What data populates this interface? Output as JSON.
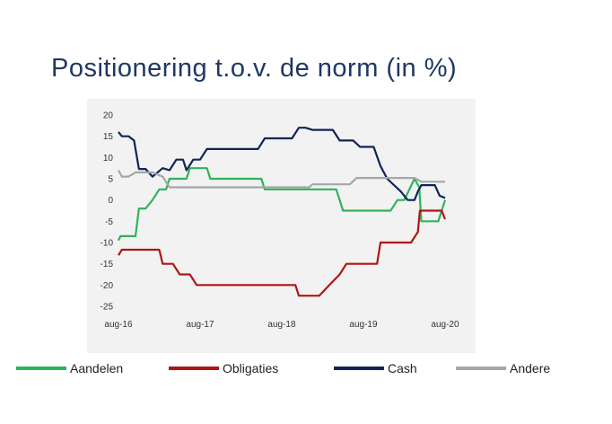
{
  "title": "Positionering t.o.v. de norm (in %)",
  "colors": {
    "aandelen": "#2fb35a",
    "obligaties": "#b01515",
    "cash": "#0f2557",
    "andere": "#a6a6a6",
    "panel": "#f2f2f2"
  },
  "chart_data": {
    "type": "line",
    "title": "Positionering t.o.v. de norm (in %)",
    "xlabel": "",
    "ylabel": "",
    "ylim": [
      -25,
      20
    ],
    "xlim": [
      0,
      48
    ],
    "y_ticks": [
      "20",
      "15",
      "10",
      "5",
      "0",
      "-5",
      "-10",
      "-15",
      "-20",
      "-25"
    ],
    "y_tick_values": [
      20,
      15,
      10,
      5,
      0,
      -5,
      -10,
      -15,
      -20,
      -25
    ],
    "x_tick_labels": [
      "aug-16",
      "aug-17",
      "aug-18",
      "aug-19",
      "aug-20"
    ],
    "x_tick_months": [
      0,
      12,
      24,
      36,
      48
    ],
    "grid": false,
    "legend_position": "bottom",
    "series": [
      {
        "name": "Aandelen",
        "color": "#2fb35a",
        "points": [
          [
            0,
            -9.5
          ],
          [
            0.3,
            -8.5
          ],
          [
            2.5,
            -8.5
          ],
          [
            3,
            -2
          ],
          [
            4,
            -2
          ],
          [
            5,
            0
          ],
          [
            6,
            2.5
          ],
          [
            7,
            2.5
          ],
          [
            7.5,
            5
          ],
          [
            10,
            5
          ],
          [
            10.5,
            7.5
          ],
          [
            13,
            7.5
          ],
          [
            13.5,
            5
          ],
          [
            21,
            5
          ],
          [
            21.5,
            2.5
          ],
          [
            32,
            2.5
          ],
          [
            33,
            -2.5
          ],
          [
            40,
            -2.5
          ],
          [
            41,
            0
          ],
          [
            42,
            0
          ],
          [
            43.5,
            5
          ],
          [
            44.2,
            3
          ],
          [
            44.5,
            -5
          ],
          [
            47,
            -5
          ],
          [
            48,
            0
          ]
        ]
      },
      {
        "name": "Obligaties",
        "color": "#b01515",
        "points": [
          [
            0,
            -13
          ],
          [
            0.5,
            -11.7
          ],
          [
            6,
            -11.7
          ],
          [
            6.5,
            -15
          ],
          [
            8,
            -15
          ],
          [
            9,
            -17.5
          ],
          [
            10.5,
            -17.5
          ],
          [
            11.5,
            -20
          ],
          [
            26,
            -20
          ],
          [
            26.5,
            -22.5
          ],
          [
            29.5,
            -22.5
          ],
          [
            31,
            -20
          ],
          [
            32.5,
            -17.5
          ],
          [
            33.5,
            -15
          ],
          [
            38,
            -15
          ],
          [
            38.5,
            -10
          ],
          [
            43,
            -10
          ],
          [
            44,
            -7.5
          ],
          [
            44.3,
            -2.5
          ],
          [
            47.5,
            -2.5
          ],
          [
            48,
            -4.5
          ]
        ]
      },
      {
        "name": "Cash",
        "color": "#0f2557",
        "points": [
          [
            0,
            16
          ],
          [
            0.5,
            15
          ],
          [
            1.5,
            15
          ],
          [
            2.3,
            14
          ],
          [
            3,
            7.3
          ],
          [
            4,
            7.3
          ],
          [
            5,
            5.5
          ],
          [
            6.5,
            7.5
          ],
          [
            7.5,
            7
          ],
          [
            8.5,
            9.5
          ],
          [
            9.5,
            9.5
          ],
          [
            10,
            7
          ],
          [
            11,
            9.5
          ],
          [
            12,
            9.5
          ],
          [
            13,
            12
          ],
          [
            20.5,
            12
          ],
          [
            21.5,
            14.5
          ],
          [
            25.5,
            14.5
          ],
          [
            26.5,
            17
          ],
          [
            27.5,
            17
          ],
          [
            28.5,
            16.5
          ],
          [
            31.5,
            16.5
          ],
          [
            32.5,
            14
          ],
          [
            34.5,
            14
          ],
          [
            35.5,
            12.5
          ],
          [
            37.5,
            12.5
          ],
          [
            38.5,
            8
          ],
          [
            39.5,
            5
          ],
          [
            41.5,
            2
          ],
          [
            42.5,
            0
          ],
          [
            43.5,
            0
          ],
          [
            44,
            2
          ],
          [
            44.5,
            3.5
          ],
          [
            46.5,
            3.5
          ],
          [
            47.2,
            1
          ],
          [
            48,
            0.5
          ]
        ]
      },
      {
        "name": "Andere",
        "color": "#a6a6a6",
        "points": [
          [
            0,
            7
          ],
          [
            0.5,
            5.5
          ],
          [
            1.5,
            5.5
          ],
          [
            2.5,
            6.5
          ],
          [
            5,
            6.5
          ],
          [
            6.5,
            5.5
          ],
          [
            7.5,
            3
          ],
          [
            28,
            3
          ],
          [
            28.5,
            3.7
          ],
          [
            34,
            3.7
          ],
          [
            35,
            5.2
          ],
          [
            43.5,
            5.2
          ],
          [
            44.5,
            4.3
          ],
          [
            48,
            4.3
          ]
        ]
      }
    ]
  }
}
